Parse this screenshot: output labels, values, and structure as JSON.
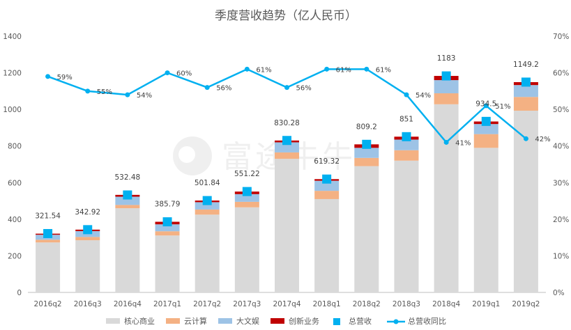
{
  "chart_data": {
    "type": "bar",
    "title": "季度营收趋势（亿人民币）",
    "categories": [
      "2016q2",
      "2016q3",
      "2016q4",
      "2017q1",
      "2017q2",
      "2017q3",
      "2017q4",
      "2018q1",
      "2018q2",
      "2018q3",
      "2018q4",
      "2019q1",
      "2019q2"
    ],
    "series": [
      {
        "name": "核心商业",
        "values": [
          273,
          285,
          460,
          311,
          425,
          465,
          730,
          510,
          690,
          720,
          1028,
          790,
          993
        ],
        "color": "#d9d9d9"
      },
      {
        "name": "云计算",
        "values": [
          15,
          18,
          18,
          23,
          28,
          30,
          35,
          45,
          45,
          57,
          60,
          75,
          75
        ],
        "color": "#f4b183"
      },
      {
        "name": "大文娱",
        "values": [
          27,
          32,
          45,
          38,
          40,
          42,
          55,
          55,
          55,
          58,
          72,
          55,
          65
        ],
        "color": "#9dc3e6"
      },
      {
        "name": "创新业务",
        "values": [
          6,
          8,
          10,
          14,
          9,
          14,
          10,
          9,
          19,
          16,
          23,
          14,
          16
        ],
        "color": "#c00000"
      }
    ],
    "total": {
      "name": "总营收",
      "values": [
        321.54,
        342.92,
        532.48,
        385.79,
        501.84,
        551.22,
        830.28,
        619.32,
        809.2,
        851,
        1183,
        934.5,
        1149.2
      ],
      "labels": [
        "321.54",
        "342.92",
        "532.48",
        "385.79",
        "501.84",
        "551.22",
        "830.28",
        "619.32",
        "809.2",
        "851",
        "1183",
        "934.5",
        "1149.2"
      ],
      "color": "#00b0f0"
    },
    "yoy": {
      "name": "总营收同比",
      "values": [
        59,
        55,
        54,
        60,
        56,
        61,
        56,
        61,
        61,
        54,
        41,
        51,
        42
      ],
      "labels": [
        "59%",
        "55%",
        "54%",
        "60%",
        "56%",
        "61%",
        "56%",
        "61%",
        "61%",
        "54%",
        "41%",
        "51%",
        "42%"
      ],
      "color": "#00b0f0"
    },
    "y_left": {
      "min": 0,
      "max": 1400,
      "ticks": [
        "0",
        "200",
        "400",
        "600",
        "800",
        "1000",
        "1200",
        "1400"
      ]
    },
    "y_right": {
      "min": 0,
      "max": 70,
      "ticks": [
        "0%",
        "10%",
        "20%",
        "30%",
        "40%",
        "50%",
        "60%",
        "70%"
      ]
    },
    "legend_position": "bottom",
    "grid": false
  },
  "watermark": {
    "text": "富途牛牛"
  }
}
